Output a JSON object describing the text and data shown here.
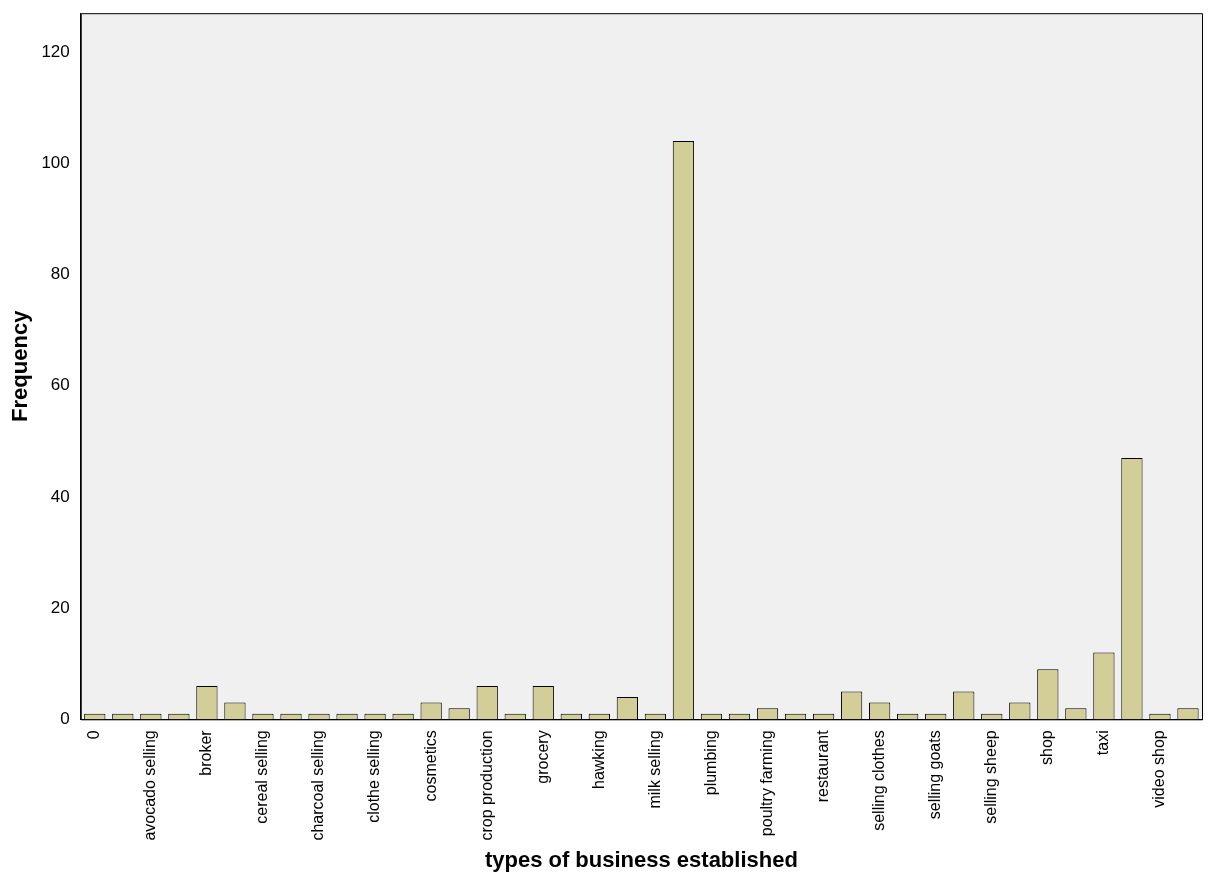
{
  "chart_data": {
    "type": "bar",
    "xlabel": "types of business established",
    "ylabel": "Frequency",
    "categories": [
      "0",
      null,
      "avocado selling",
      null,
      "broker",
      null,
      "cereal selling",
      null,
      "charcoal selling",
      null,
      "clothe selling",
      null,
      "cosmetics",
      null,
      "crop production",
      null,
      "grocery",
      null,
      "hawking",
      null,
      "milk selling",
      null,
      "plumbing",
      null,
      "poultry farming",
      null,
      "restaurant",
      null,
      "selling clothes",
      null,
      "selling goats",
      null,
      "selling sheep",
      null,
      "shop",
      null,
      "taxi",
      null,
      "video shop",
      null
    ],
    "values": [
      1,
      1,
      1,
      1,
      6,
      3,
      1,
      1,
      1,
      1,
      1,
      1,
      3,
      2,
      6,
      1,
      6,
      1,
      1,
      4,
      1,
      104,
      1,
      1,
      2,
      1,
      1,
      5,
      3,
      1,
      1,
      5,
      1,
      3,
      9,
      2,
      12,
      47,
      1,
      2
    ],
    "color": "#d3ce97",
    "ylim": [
      0,
      127
    ],
    "yticks": [
      0,
      20,
      40,
      60,
      80,
      100,
      120
    ],
    "grid": false,
    "legend": false
  }
}
